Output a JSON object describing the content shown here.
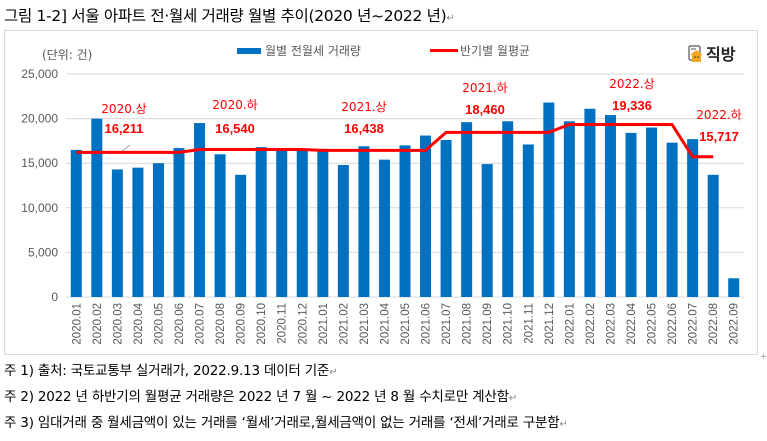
{
  "title": "그림 1-2] 서울 아파트 전·월세 거래량 월별 추이(2020 년~2022 년)",
  "unit_label": "(단위: 건)",
  "logo_text": "직방",
  "legend": {
    "bar_label": "월별 전월세 거래량",
    "line_label": "반기별 월평균"
  },
  "colors": {
    "bar": "#0070c0",
    "line": "#ff0000",
    "annotation": "#ff0000",
    "grid": "#d9d9d9",
    "axis_text": "#595959"
  },
  "chart_data": {
    "type": "bar",
    "title": "서울 아파트 전·월세 거래량 월별 추이(2020 년~2022 년)",
    "xlabel": "",
    "ylabel": "(단위: 건)",
    "ylim": [
      0,
      25000
    ],
    "yticks": [
      0,
      5000,
      10000,
      15000,
      20000,
      25000
    ],
    "ytick_labels": [
      "0",
      "5,000",
      "10,000",
      "15,000",
      "20,000",
      "25,000"
    ],
    "grid": true,
    "legend_position": "top",
    "categories": [
      "2020.01",
      "2020.02",
      "2020.03",
      "2020.04",
      "2020.05",
      "2020.06",
      "2020.07",
      "2020.08",
      "2020.09",
      "2020.10",
      "2020.11",
      "2020.12",
      "2021.01",
      "2021.02",
      "2021.03",
      "2021.04",
      "2021.05",
      "2021.06",
      "2021.07",
      "2021.08",
      "2021.09",
      "2021.10",
      "2021.11",
      "2021.12",
      "2022.01",
      "2022.02",
      "2022.03",
      "2022.04",
      "2022.05",
      "2022.06",
      "2022.07",
      "2022.08",
      "2022.09"
    ],
    "series": [
      {
        "name": "월별 전월세 거래량",
        "type": "bar",
        "values": [
          16500,
          20000,
          14300,
          14500,
          15000,
          16700,
          19500,
          16000,
          13700,
          16800,
          16600,
          16600,
          16400,
          14800,
          16900,
          15400,
          17000,
          18100,
          17600,
          19600,
          14900,
          19700,
          17100,
          21800,
          19700,
          21100,
          20400,
          18400,
          19000,
          17300,
          17700,
          13700,
          2100
        ]
      },
      {
        "name": "반기별 월평균",
        "type": "line",
        "values": [
          16211,
          16211,
          16211,
          16211,
          16211,
          16211,
          16540,
          16540,
          16540,
          16540,
          16540,
          16540,
          16438,
          16438,
          16438,
          16438,
          16438,
          16438,
          18460,
          18460,
          18460,
          18460,
          18460,
          18460,
          19336,
          19336,
          19336,
          19336,
          19336,
          19336,
          15717,
          15717,
          null
        ]
      }
    ],
    "annotations": [
      {
        "period": "2020.상",
        "value_label": "16,211",
        "value": 16211
      },
      {
        "period": "2020.하",
        "value_label": "16,540",
        "value": 16540
      },
      {
        "period": "2021.상",
        "value_label": "16,438",
        "value": 16438
      },
      {
        "period": "2021.하",
        "value_label": "18,460",
        "value": 18460
      },
      {
        "period": "2022.상",
        "value_label": "19,336",
        "value": 19336
      },
      {
        "period": "2022.하",
        "value_label": "15,717",
        "value": 15717
      }
    ]
  },
  "notes": [
    "주 1) 출처: 국토교통부 실거래가, 2022.9.13 데이터  기준",
    "주 2) 2022 년 하반기의 월평균 거래량은 2022 년 7 월 ~ 2022 년 8 월 수치로만 계산함",
    "주 3) 임대거래 중 월세금액이 있는 거래를 ‘월세’거래로,월세금액이 없는 거래를 ‘전세’거래로 구분함"
  ],
  "para_mark": "↵"
}
